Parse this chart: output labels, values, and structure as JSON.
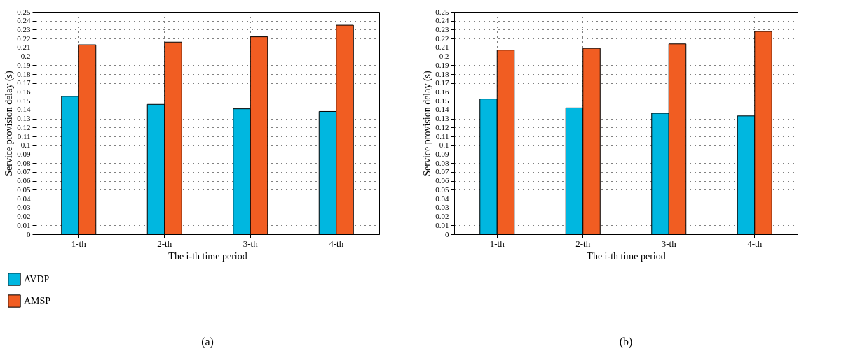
{
  "chart_data": [
    {
      "type": "bar",
      "xlabel": "The i-th time period",
      "ylabel": "Service provision delay (s)",
      "categories": [
        "1-th",
        "2-th",
        "3-th",
        "4-th"
      ],
      "series": [
        {
          "name": "AVDP",
          "color": "#00b7e0",
          "values": [
            0.155,
            0.146,
            0.141,
            0.138
          ]
        },
        {
          "name": "AMSP",
          "color": "#f15d22",
          "values": [
            0.213,
            0.216,
            0.222,
            0.235
          ]
        }
      ],
      "ylim": [
        0,
        0.25
      ],
      "yticks": [
        0,
        0.01,
        0.02,
        0.03,
        0.04,
        0.05,
        0.06,
        0.07,
        0.08,
        0.09,
        0.1,
        0.11,
        0.12,
        0.13,
        0.14,
        0.15,
        0.16,
        0.17,
        0.18,
        0.19,
        0.2,
        0.21,
        0.22,
        0.23,
        0.24,
        0.25
      ],
      "grid": true,
      "legend": "bottom left",
      "annotations": [
        "(a)"
      ]
    },
    {
      "type": "bar",
      "xlabel": "The i-th time period",
      "ylabel": "Service provision delay (s)",
      "categories": [
        "1-th",
        "2-th",
        "3-th",
        "4-th"
      ],
      "series": [
        {
          "name": "AVDP",
          "color": "#00b7e0",
          "values": [
            0.152,
            0.142,
            0.136,
            0.133
          ]
        },
        {
          "name": "AMSP",
          "color": "#f15d22",
          "values": [
            0.207,
            0.209,
            0.214,
            0.228
          ]
        }
      ],
      "ylim": [
        0,
        0.25
      ],
      "yticks": [
        0,
        0.01,
        0.02,
        0.03,
        0.04,
        0.05,
        0.06,
        0.07,
        0.08,
        0.09,
        0.1,
        0.11,
        0.12,
        0.13,
        0.14,
        0.15,
        0.16,
        0.17,
        0.18,
        0.19,
        0.2,
        0.21,
        0.22,
        0.23,
        0.24,
        0.25
      ],
      "grid": true,
      "legend": "bottom left",
      "annotations": [
        "(b)"
      ]
    }
  ]
}
